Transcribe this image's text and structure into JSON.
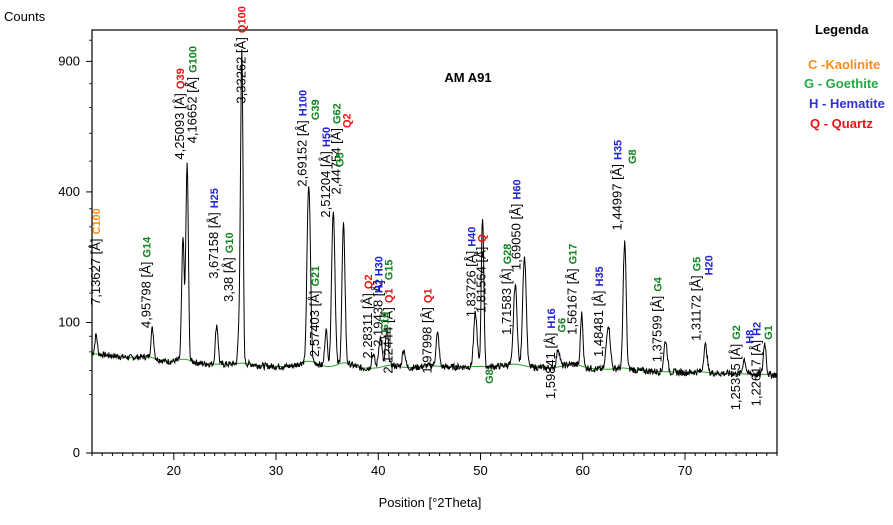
{
  "chart_data": {
    "type": "line",
    "title": "AM  A91",
    "xlabel": "Position [°2Theta]",
    "ylabel": "Counts",
    "xlim": [
      12,
      79
    ],
    "xticks": [
      20,
      30,
      40,
      50,
      60,
      70
    ],
    "yticks": [
      {
        "value": 0,
        "label": "0"
      },
      {
        "value": 100,
        "label": "100"
      },
      {
        "value": 400,
        "label": "400"
      },
      {
        "value": 900,
        "label": "900"
      }
    ],
    "y_scale": "sqrt",
    "ylim": [
      0,
      1050
    ],
    "grid": false,
    "legend": {
      "title": "Legenda",
      "placement": "right",
      "items": [
        {
          "label": "C -Kaolinite",
          "color": "#ff8c1a"
        },
        {
          "label": "G - Goethite",
          "color": "#22aa44"
        },
        {
          "label": "H - Hematite",
          "color": "#3333cc"
        },
        {
          "label": "Q - Quartz",
          "color": "#ee1111"
        }
      ]
    },
    "phase_colors": {
      "C": "#ff8c1a",
      "G": "#11841f",
      "H": "#2222dd",
      "Q": "#ee1111"
    },
    "background": {
      "x": [
        12,
        20,
        30,
        40,
        50,
        60,
        70,
        79
      ],
      "y": [
        58,
        48,
        44,
        42,
        44,
        42,
        38,
        36
      ]
    },
    "amorphous_humps": [
      {
        "center": 17.5,
        "height": 3,
        "width": 1.2
      },
      {
        "center": 21.0,
        "height": 4,
        "width": 1.0
      },
      {
        "center": 26.8,
        "height": 2,
        "width": 1.2
      },
      {
        "center": 33.2,
        "height": 6,
        "width": 1.2
      },
      {
        "center": 36.7,
        "height": 5,
        "width": 1.0
      },
      {
        "center": 41.2,
        "height": 3,
        "width": 1.0
      },
      {
        "center": 45.0,
        "height": 2,
        "width": 1.0
      },
      {
        "center": 53.3,
        "height": 3,
        "width": 1.2
      },
      {
        "center": 59.0,
        "height": 4,
        "width": 1.2
      },
      {
        "center": 64.0,
        "height": 2,
        "width": 1.0
      },
      {
        "center": 71.5,
        "height": 1,
        "width": 1.0
      }
    ],
    "peaks": [
      {
        "x": 12.4,
        "height": 25,
        "width": 0.16
      },
      {
        "x": 17.9,
        "height": 38,
        "width": 0.18
      },
      {
        "x": 20.9,
        "height": 220,
        "width": 0.16
      },
      {
        "x": 21.3,
        "height": 440,
        "width": 0.15
      },
      {
        "x": 24.2,
        "height": 50,
        "width": 0.18
      },
      {
        "x": 26.4,
        "height": 50,
        "width": 0.15
      },
      {
        "x": 26.65,
        "height": 900,
        "width": 0.14
      },
      {
        "x": 33.2,
        "height": 370,
        "width": 0.2
      },
      {
        "x": 34.9,
        "height": 45,
        "width": 0.18
      },
      {
        "x": 35.6,
        "height": 300,
        "width": 0.2
      },
      {
        "x": 36.6,
        "height": 260,
        "width": 0.18
      },
      {
        "x": 39.5,
        "height": 15,
        "width": 0.2
      },
      {
        "x": 40.2,
        "height": 35,
        "width": 0.22
      },
      {
        "x": 40.85,
        "height": 45,
        "width": 0.18
      },
      {
        "x": 42.5,
        "height": 20,
        "width": 0.2
      },
      {
        "x": 45.8,
        "height": 40,
        "width": 0.2
      },
      {
        "x": 49.5,
        "height": 70,
        "width": 0.22
      },
      {
        "x": 50.2,
        "height": 280,
        "width": 0.15
      },
      {
        "x": 53.4,
        "height": 120,
        "width": 0.22
      },
      {
        "x": 54.3,
        "height": 180,
        "width": 0.22
      },
      {
        "x": 57.6,
        "height": 20,
        "width": 0.22
      },
      {
        "x": 59.9,
        "height": 70,
        "width": 0.16
      },
      {
        "x": 62.5,
        "height": 55,
        "width": 0.25
      },
      {
        "x": 64.1,
        "height": 220,
        "width": 0.18
      },
      {
        "x": 68.1,
        "height": 35,
        "width": 0.22
      },
      {
        "x": 72.0,
        "height": 30,
        "width": 0.22
      },
      {
        "x": 75.8,
        "height": 15,
        "width": 0.2
      },
      {
        "x": 77.8,
        "height": 35,
        "width": 0.18
      }
    ],
    "annotations": [
      {
        "x": 12.8,
        "text": "7,13627 [Å]",
        "phase": "C100",
        "ytop": 270
      },
      {
        "x": 17.7,
        "text": "4,95798 [Å]",
        "phase": "G14",
        "ytop": 215
      },
      {
        "x": 21.0,
        "text": "4,25093 [Å]",
        "phase": "Q39",
        "ytop": 760
      },
      {
        "x": 22.2,
        "text": "4,16652 [Å]",
        "phase": "G100",
        "ytop": 830
      },
      {
        "x": 24.3,
        "text": "3,67158 [Å]",
        "phase": "H25",
        "ytop": 340
      },
      {
        "x": 25.8,
        "text": "3,38 [Å]",
        "phase": "G10",
        "ytop": 225
      },
      {
        "x": 27.0,
        "text": "3,33262 [Å]",
        "phase": "Q100",
        "ytop": 1015
      },
      {
        "x": 33.0,
        "text": "2,69152 [Å]",
        "phase": "H100",
        "ytop": 650
      },
      {
        "x": 34.2,
        "text": "2,57403 [Å]",
        "phase": "G21",
        "ytop": 155
      },
      {
        "x": 35.3,
        "text": "2,51204 [Å]",
        "phase": "H50",
        "ytop": 535
      },
      {
        "x": 36.3,
        "text": "2,44754 [Å]",
        "phase": "G62",
        "ytop": 620
      },
      {
        "x": 39.4,
        "text": "2,28311 [Å]",
        "phase": "Q2",
        "ytop": 150
      },
      {
        "x": 40.4,
        "text": "2,19438 [Å]",
        "phase": "H30",
        "ytop": 175
      },
      {
        "x": 41.4,
        "text": "2,12444 [Å]",
        "phase": "Q1",
        "ytop": 125
      },
      {
        "x": 45.2,
        "text": "1,97998 [Å]",
        "phase": "Q1",
        "ytop": 125
      },
      {
        "x": 49.5,
        "text": "1,83726 [Å]",
        "phase": "H40",
        "ytop": 240
      },
      {
        "x": 50.5,
        "text": "1,81564 [Å]",
        "phase": "Q",
        "ytop": 250
      },
      {
        "x": 53.0,
        "text": "1,71583 [Å]",
        "phase": "G28",
        "ytop": 200
      },
      {
        "x": 53.9,
        "text": "1,69050 [Å]",
        "phase": "H60",
        "ytop": 365
      },
      {
        "x": 57.3,
        "text": "1,59841 [Å]",
        "phase": "H16",
        "ytop": 85
      },
      {
        "x": 59.4,
        "text": "1,56167 [Å]",
        "phase": "G17",
        "ytop": 200
      },
      {
        "x": 62.0,
        "text": "1,48481 [Å]",
        "phase": "H35",
        "ytop": 155
      },
      {
        "x": 63.8,
        "text": "1,44997 [Å]",
        "phase": "H35",
        "ytop": 490
      },
      {
        "x": 67.7,
        "text": "1,37599 [Å]",
        "phase": "G4",
        "ytop": 145
      },
      {
        "x": 71.5,
        "text": "1,31172 [Å]",
        "phase": "G5",
        "ytop": 185
      },
      {
        "x": 75.4,
        "text": "1,25375 [Å]",
        "phase": "G2",
        "ytop": 70
      },
      {
        "x": 77.4,
        "text": "1,22617 [Å]",
        "phase": "H2",
        "ytop": 75
      }
    ],
    "extra_phase_labels": [
      {
        "text": "G39",
        "phase": "G",
        "x": 34.2,
        "y": 650
      },
      {
        "text": "G5",
        "phase": "G",
        "x": 36.6,
        "y": 480
      },
      {
        "text": "Q2",
        "phase": "Q",
        "x": 37.3,
        "y": 620
      },
      {
        "text": "H2",
        "phase": "H",
        "x": 40.4,
        "y": 150
      },
      {
        "text": "G10",
        "phase": "G",
        "x": 41.0,
        "y": 85
      },
      {
        "text": "G15",
        "phase": "G",
        "x": 41.4,
        "y": 175
      },
      {
        "text": "G8",
        "phase": "G",
        "x": 51.2,
        "y": 28
      },
      {
        "text": "G6",
        "phase": "G",
        "x": 58.3,
        "y": 85
      },
      {
        "text": "G8",
        "phase": "G",
        "x": 65.2,
        "y": 490
      },
      {
        "text": "H20",
        "phase": "H",
        "x": 72.7,
        "y": 185
      },
      {
        "text": "H8",
        "phase": "H",
        "x": 76.7,
        "y": 70
      },
      {
        "text": "G1",
        "phase": "G",
        "x": 78.5,
        "y": 75
      }
    ]
  }
}
